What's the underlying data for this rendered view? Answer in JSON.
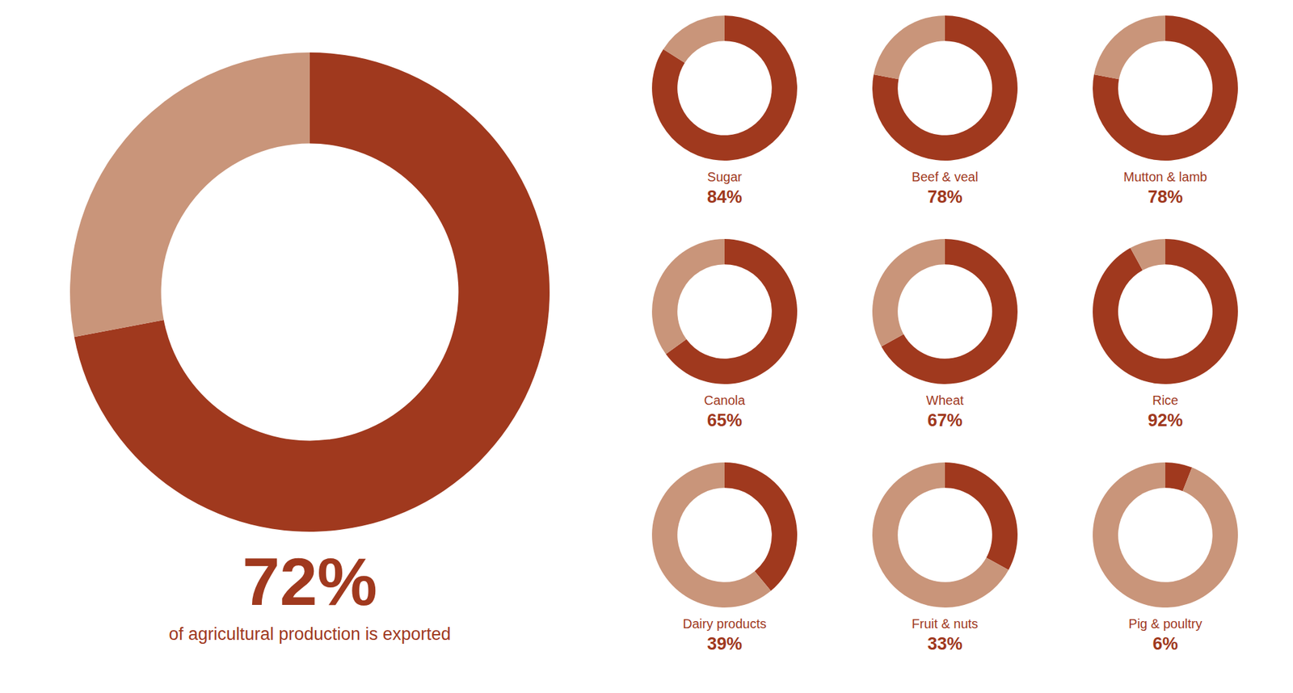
{
  "chart_data": [
    {
      "type": "donut",
      "values": [
        72,
        28
      ],
      "colors": [
        "#A0391E",
        "#C9957A"
      ],
      "value_labels": [
        "72%",
        null
      ],
      "annotations": [
        "of agricultural production is exported"
      ],
      "color": "#A0391E"
    },
    {
      "type": "donut",
      "title": "Sugar",
      "values": [
        84,
        16
      ],
      "colors": [
        "#A0391E",
        "#C9957A"
      ],
      "value_labels": [
        "84%",
        null
      ],
      "color": "#A0391E"
    },
    {
      "type": "donut",
      "title": "Beef & veal",
      "values": [
        78,
        22
      ],
      "colors": [
        "#A0391E",
        "#C9957A"
      ],
      "value_labels": [
        "78%",
        null
      ],
      "color": "#A0391E"
    },
    {
      "type": "donut",
      "title": "Mutton & lamb",
      "values": [
        78,
        22
      ],
      "colors": [
        "#A0391E",
        "#C9957A"
      ],
      "value_labels": [
        "78%",
        null
      ],
      "color": "#A0391E"
    },
    {
      "type": "donut",
      "title": "Canola",
      "values": [
        65,
        35
      ],
      "colors": [
        "#A0391E",
        "#C9957A"
      ],
      "value_labels": [
        "65%",
        null
      ],
      "color": "#A0391E"
    },
    {
      "type": "donut",
      "title": "Wheat",
      "values": [
        67,
        33
      ],
      "colors": [
        "#A0391E",
        "#C9957A"
      ],
      "value_labels": [
        "67%",
        null
      ],
      "color": "#A0391E"
    },
    {
      "type": "donut",
      "title": "Rice",
      "values": [
        92,
        8
      ],
      "colors": [
        "#A0391E",
        "#C9957A"
      ],
      "value_labels": [
        "92%",
        null
      ],
      "color": "#A0391E"
    },
    {
      "type": "donut",
      "title": "Dairy products",
      "values": [
        39,
        61
      ],
      "colors": [
        "#A0391E",
        "#C9957A"
      ],
      "value_labels": [
        "39%",
        null
      ],
      "color": "#A0391E"
    },
    {
      "type": "donut",
      "title": "Fruit & nuts",
      "values": [
        33,
        67
      ],
      "colors": [
        "#A0391E",
        "#C9957A"
      ],
      "value_labels": [
        "33%",
        null
      ],
      "color": "#A0391E"
    },
    {
      "type": "donut",
      "title": "Pig & poultry",
      "values": [
        6,
        94
      ],
      "colors": [
        "#A0391E",
        "#C9957A"
      ],
      "value_labels": [
        "6%",
        null
      ],
      "color": "#A0391E"
    }
  ]
}
